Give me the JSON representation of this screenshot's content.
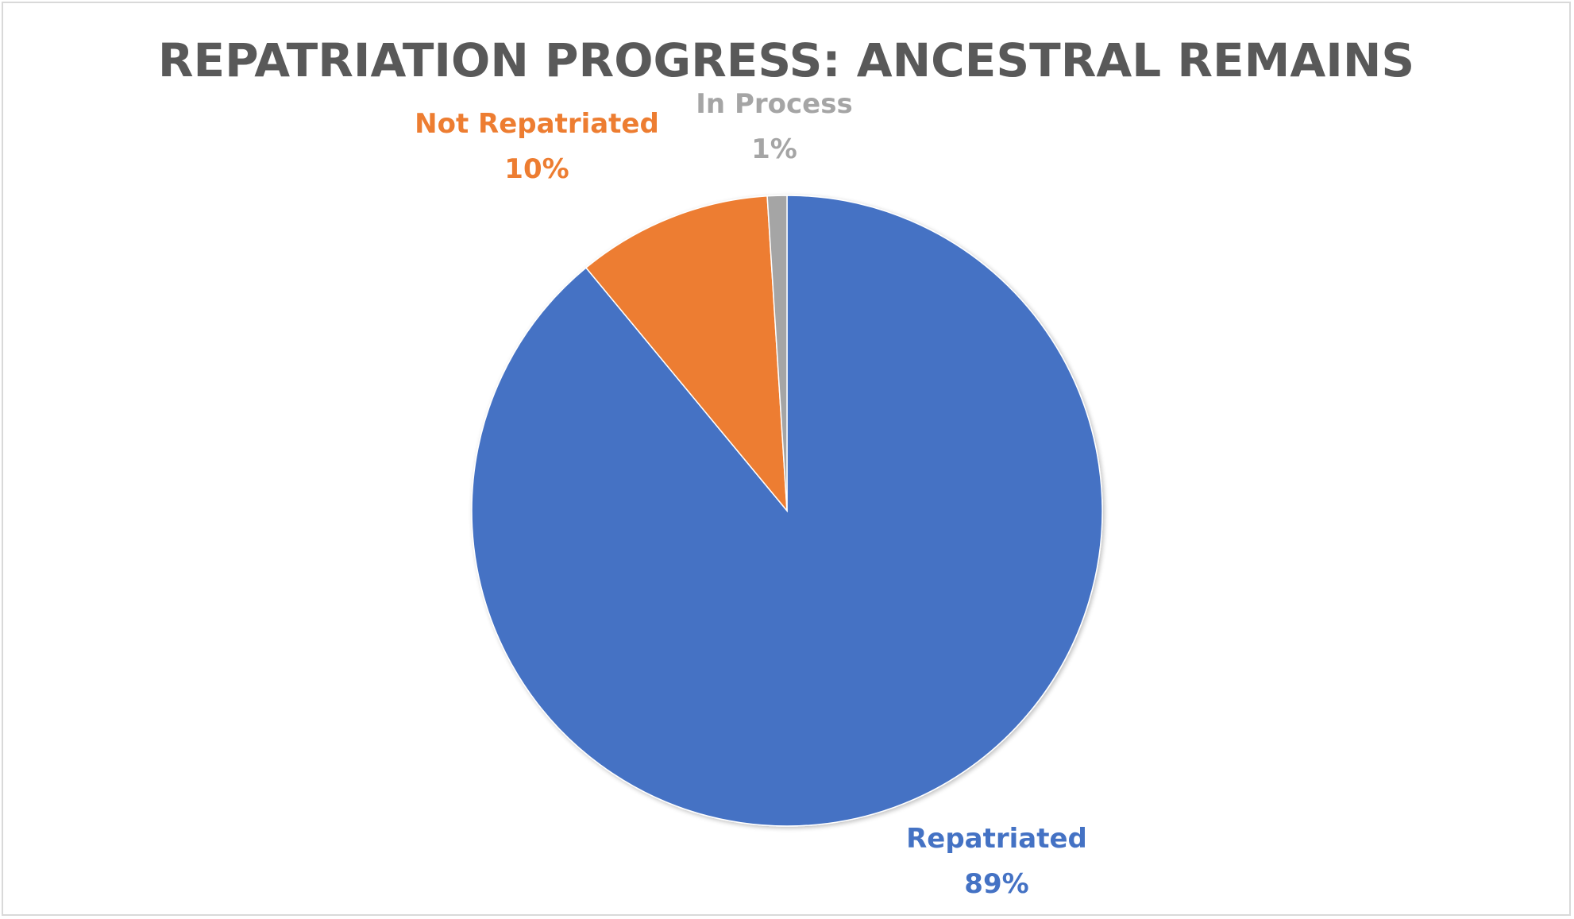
{
  "chart_data": {
    "type": "pie",
    "title": "REPATRIATION PROGRESS: ANCESTRAL REMAINS",
    "slices": [
      {
        "label": "Repatriated",
        "value": 89,
        "value_label": "89%",
        "color": "#4472C4"
      },
      {
        "label": "Not Repatriated",
        "value": 10,
        "value_label": "10%",
        "color": "#ED7D31"
      },
      {
        "label": "In Process",
        "value": 1,
        "value_label": "1%",
        "color": "#A5A5A5"
      }
    ],
    "start_angle_deg": 0,
    "direction": "clockwise",
    "legend": "none",
    "data_labels": "outside"
  }
}
